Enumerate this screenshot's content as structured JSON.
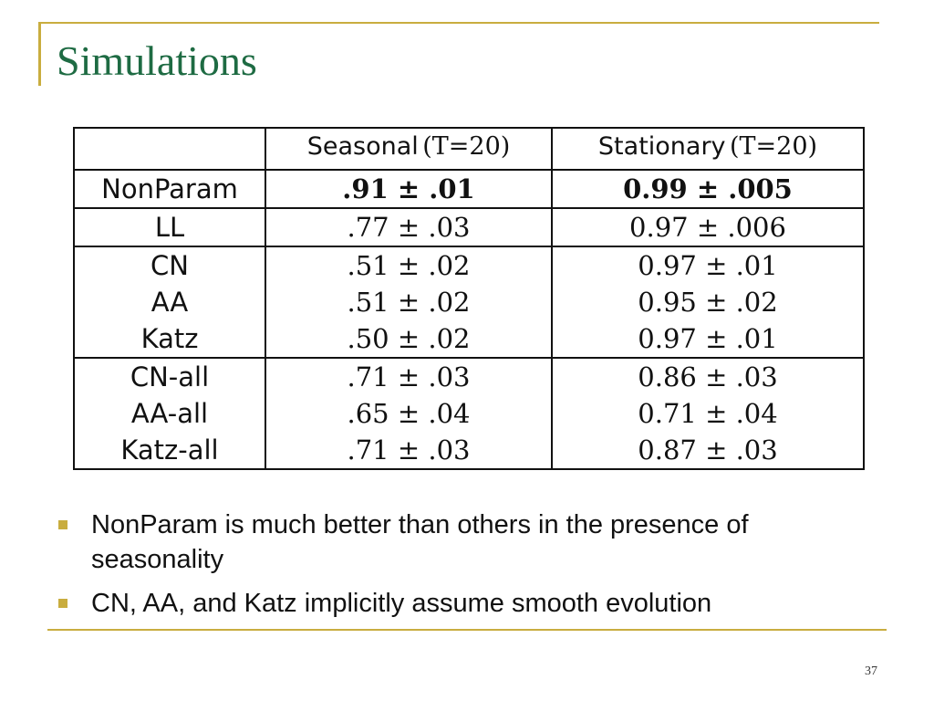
{
  "slide": {
    "title": "Simulations",
    "page_number": "37"
  },
  "table": {
    "headers": [
      {
        "word": "",
        "param": ""
      },
      {
        "word": "Seasonal",
        "param": "(T=20)"
      },
      {
        "word": "Stationary",
        "param": "(T=20)"
      }
    ],
    "rows": [
      {
        "label": "NonParam",
        "seasonal": ".91 ± .01",
        "stationary": "0.99 ± .005",
        "bold": true
      },
      {
        "label": "LL",
        "seasonal": ".77 ± .03",
        "stationary": "0.97 ± .006",
        "bold": false
      },
      {
        "label": "CN",
        "seasonal": ".51 ± .02",
        "stationary": "0.97 ± .01",
        "bold": false
      },
      {
        "label": "AA",
        "seasonal": ".51 ± .02",
        "stationary": "0.95 ± .02",
        "bold": false
      },
      {
        "label": "Katz",
        "seasonal": ".50 ± .02",
        "stationary": "0.97 ± .01",
        "bold": false
      },
      {
        "label": "CN-all",
        "seasonal": ".71 ± .03",
        "stationary": "0.86 ± .03",
        "bold": false
      },
      {
        "label": "AA-all",
        "seasonal": ".65 ± .04",
        "stationary": "0.71 ± .04",
        "bold": false
      },
      {
        "label": "Katz-all",
        "seasonal": ".71 ± .03",
        "stationary": "0.87 ± .03",
        "bold": false
      }
    ]
  },
  "bullets": [
    "NonParam is much better than others in the presence of seasonality",
    "CN, AA, and Katz implicitly assume smooth evolution"
  ],
  "colors": {
    "title": "#1e6b43",
    "accent": "#c9ad3f"
  }
}
